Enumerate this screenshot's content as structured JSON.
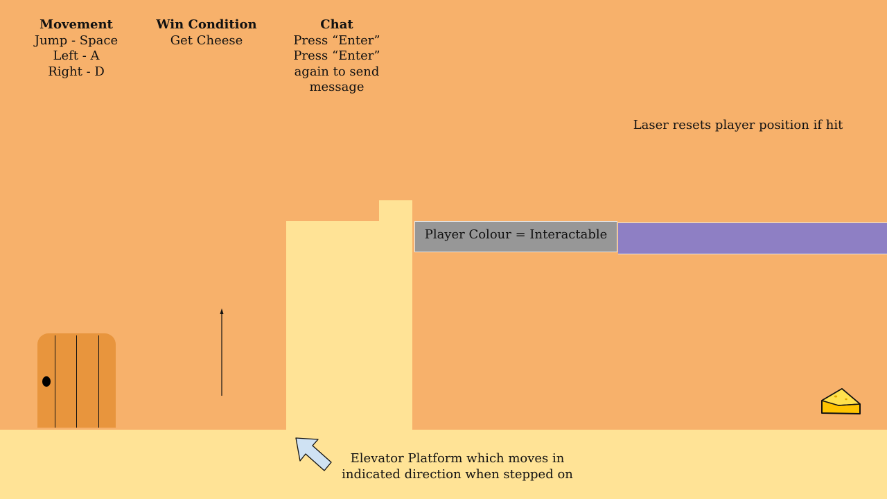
{
  "hud": {
    "movement": {
      "title": "Movement",
      "lines": [
        "Jump - Space",
        "Left - A",
        "Right - D"
      ]
    },
    "win_condition": {
      "title": "Win Condition",
      "lines": [
        "Get Cheese"
      ]
    },
    "chat": {
      "title": "Chat",
      "lines": [
        "Press “Enter”",
        "Press “Enter”",
        "again to send",
        "message"
      ]
    }
  },
  "notes": {
    "laser": "Laser resets player position if hit",
    "interactable": "Player Colour = Interactable",
    "elevator": [
      "Elevator Platform which moves in",
      "indicated direction when stepped on"
    ]
  },
  "sprites": {
    "door": "door-icon",
    "elevator_direction": "up-arrow-icon",
    "pointer": "pointer-arrow-icon",
    "cheese": "cheese-icon"
  },
  "colors": {
    "background": "#F7B16B",
    "platform": "#FFE396",
    "interactable_box": "#979797",
    "laser": "#8E7FC4",
    "door": "#E8953D",
    "cheese": "#FFC400",
    "pointer": "#CFE2F3"
  }
}
